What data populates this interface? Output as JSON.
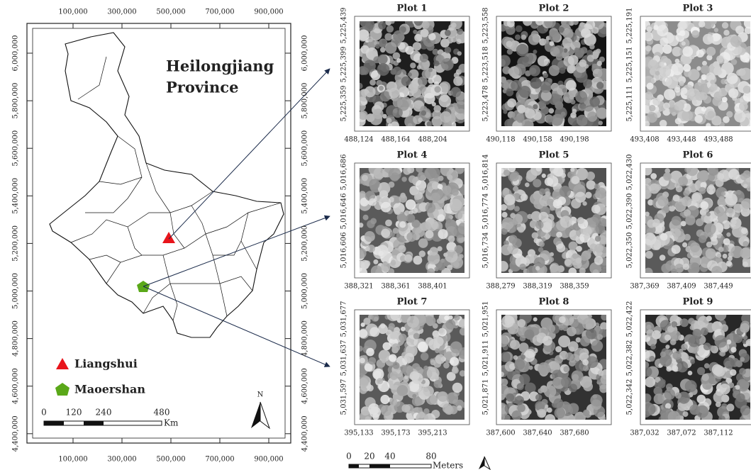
{
  "map": {
    "title_lines": [
      "Heilongjiang",
      "Province"
    ],
    "xticks": [
      "100,000",
      "300,000",
      "500,000",
      "700,000",
      "900,000"
    ],
    "yticks": [
      "6,000,000",
      "5,800,000",
      "5,600,000",
      "5,400,000",
      "5,200,000",
      "5,000,000",
      "4,800,000",
      "4,600,000",
      "4,400,000"
    ],
    "legend": [
      "Liangshui",
      "Maoershan"
    ],
    "scale_labels": [
      "0",
      "120",
      "240",
      "480"
    ],
    "scale_unit": "Km",
    "north": "N"
  },
  "plots": [
    {
      "title": "Plot 1",
      "xticks": [
        "488,124",
        "488,164",
        "488,204"
      ],
      "yticks": [
        "5,225,439",
        "5,225,399",
        "5,225,359"
      ]
    },
    {
      "title": "Plot 2",
      "xticks": [
        "490,118",
        "490,158",
        "490,198"
      ],
      "yticks": [
        "5,223,558",
        "5,223,518",
        "5,223,478"
      ]
    },
    {
      "title": "Plot 3",
      "xticks": [
        "493,408",
        "493,448",
        "493,488"
      ],
      "yticks": [
        "5,225,191",
        "5,225,151",
        "5,225,111"
      ]
    },
    {
      "title": "Plot 4",
      "xticks": [
        "388,321",
        "388,361",
        "388,401"
      ],
      "yticks": [
        "5,016,686",
        "5,016,646",
        "5,016,606"
      ]
    },
    {
      "title": "Plot 5",
      "xticks": [
        "388,279",
        "388,319",
        "388,359"
      ],
      "yticks": [
        "5,016,814",
        "5,016,774",
        "5,016,734"
      ]
    },
    {
      "title": "Plot 6",
      "xticks": [
        "387,369",
        "387,409",
        "387,449"
      ],
      "yticks": [
        "5,022,430",
        "5,022,390",
        "5,022,350"
      ]
    },
    {
      "title": "Plot 7",
      "xticks": [
        "395,133",
        "395,173",
        "395,213"
      ],
      "yticks": [
        "5,031,677",
        "5,031,637",
        "5,031,597"
      ]
    },
    {
      "title": "Plot 8",
      "xticks": [
        "387,600",
        "387,640",
        "387,680"
      ],
      "yticks": [
        "5,021,951",
        "5,021,911",
        "5,021,871"
      ]
    },
    {
      "title": "Plot 9",
      "xticks": [
        "387,032",
        "387,072",
        "387,112"
      ],
      "yticks": [
        "5,022,422",
        "5,022,382",
        "5,022,342"
      ]
    }
  ],
  "plot_scale": {
    "labels": [
      "0",
      "20",
      "40",
      "80"
    ],
    "unit": "Meters"
  }
}
